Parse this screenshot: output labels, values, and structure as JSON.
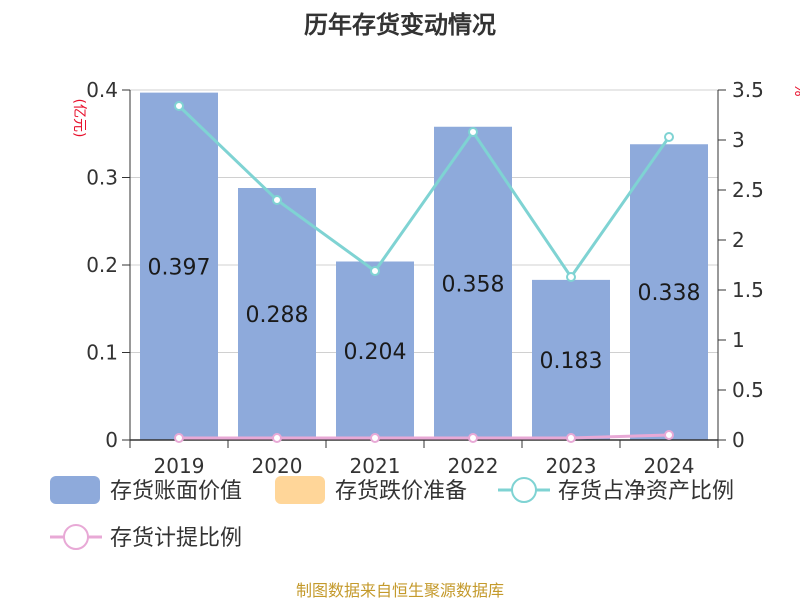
{
  "chart_data": {
    "type": "bar",
    "title": "历年存货变动情况",
    "categories": [
      "2019",
      "2020",
      "2021",
      "2022",
      "2023",
      "2024"
    ],
    "left_axis": {
      "unit": "(亿元)",
      "ylim": [
        0,
        0.4
      ],
      "ticks": [
        "0",
        "0.1",
        "0.2",
        "0.3",
        "0.4"
      ],
      "tick_values": [
        0,
        0.1,
        0.2,
        0.3,
        0.4
      ]
    },
    "right_axis": {
      "unit": "%",
      "ylim": [
        0,
        3.5
      ],
      "ticks": [
        "0",
        "0.5",
        "1",
        "1.5",
        "2",
        "2.5",
        "3",
        "3.5"
      ],
      "tick_values": [
        0,
        0.5,
        1,
        1.5,
        2,
        2.5,
        3,
        3.5
      ]
    },
    "series": [
      {
        "name": "存货账面价值",
        "type": "bar",
        "axis": "left",
        "values": [
          0.397,
          0.288,
          0.204,
          0.358,
          0.183,
          0.338
        ],
        "labels": [
          "0.397",
          "0.288",
          "0.204",
          "0.358",
          "0.183",
          "0.338"
        ],
        "color": "#8eaadb"
      },
      {
        "name": "存货跌价准备",
        "type": "bar",
        "axis": "left",
        "values": [
          0,
          0,
          0,
          0,
          0,
          0
        ],
        "color": "#ffd699"
      },
      {
        "name": "存货占净资产比例",
        "type": "line",
        "axis": "right",
        "values": [
          3.34,
          2.4,
          1.69,
          3.08,
          1.63,
          3.03
        ],
        "color": "#7fd3d3"
      },
      {
        "name": "存货计提比例",
        "type": "line",
        "axis": "right",
        "values": [
          0.02,
          0.02,
          0.02,
          0.02,
          0.02,
          0.05
        ],
        "color": "#e8a9d6"
      }
    ],
    "grid": true,
    "legend": "bottom"
  },
  "source": "制图数据来自恒生聚源数据库"
}
